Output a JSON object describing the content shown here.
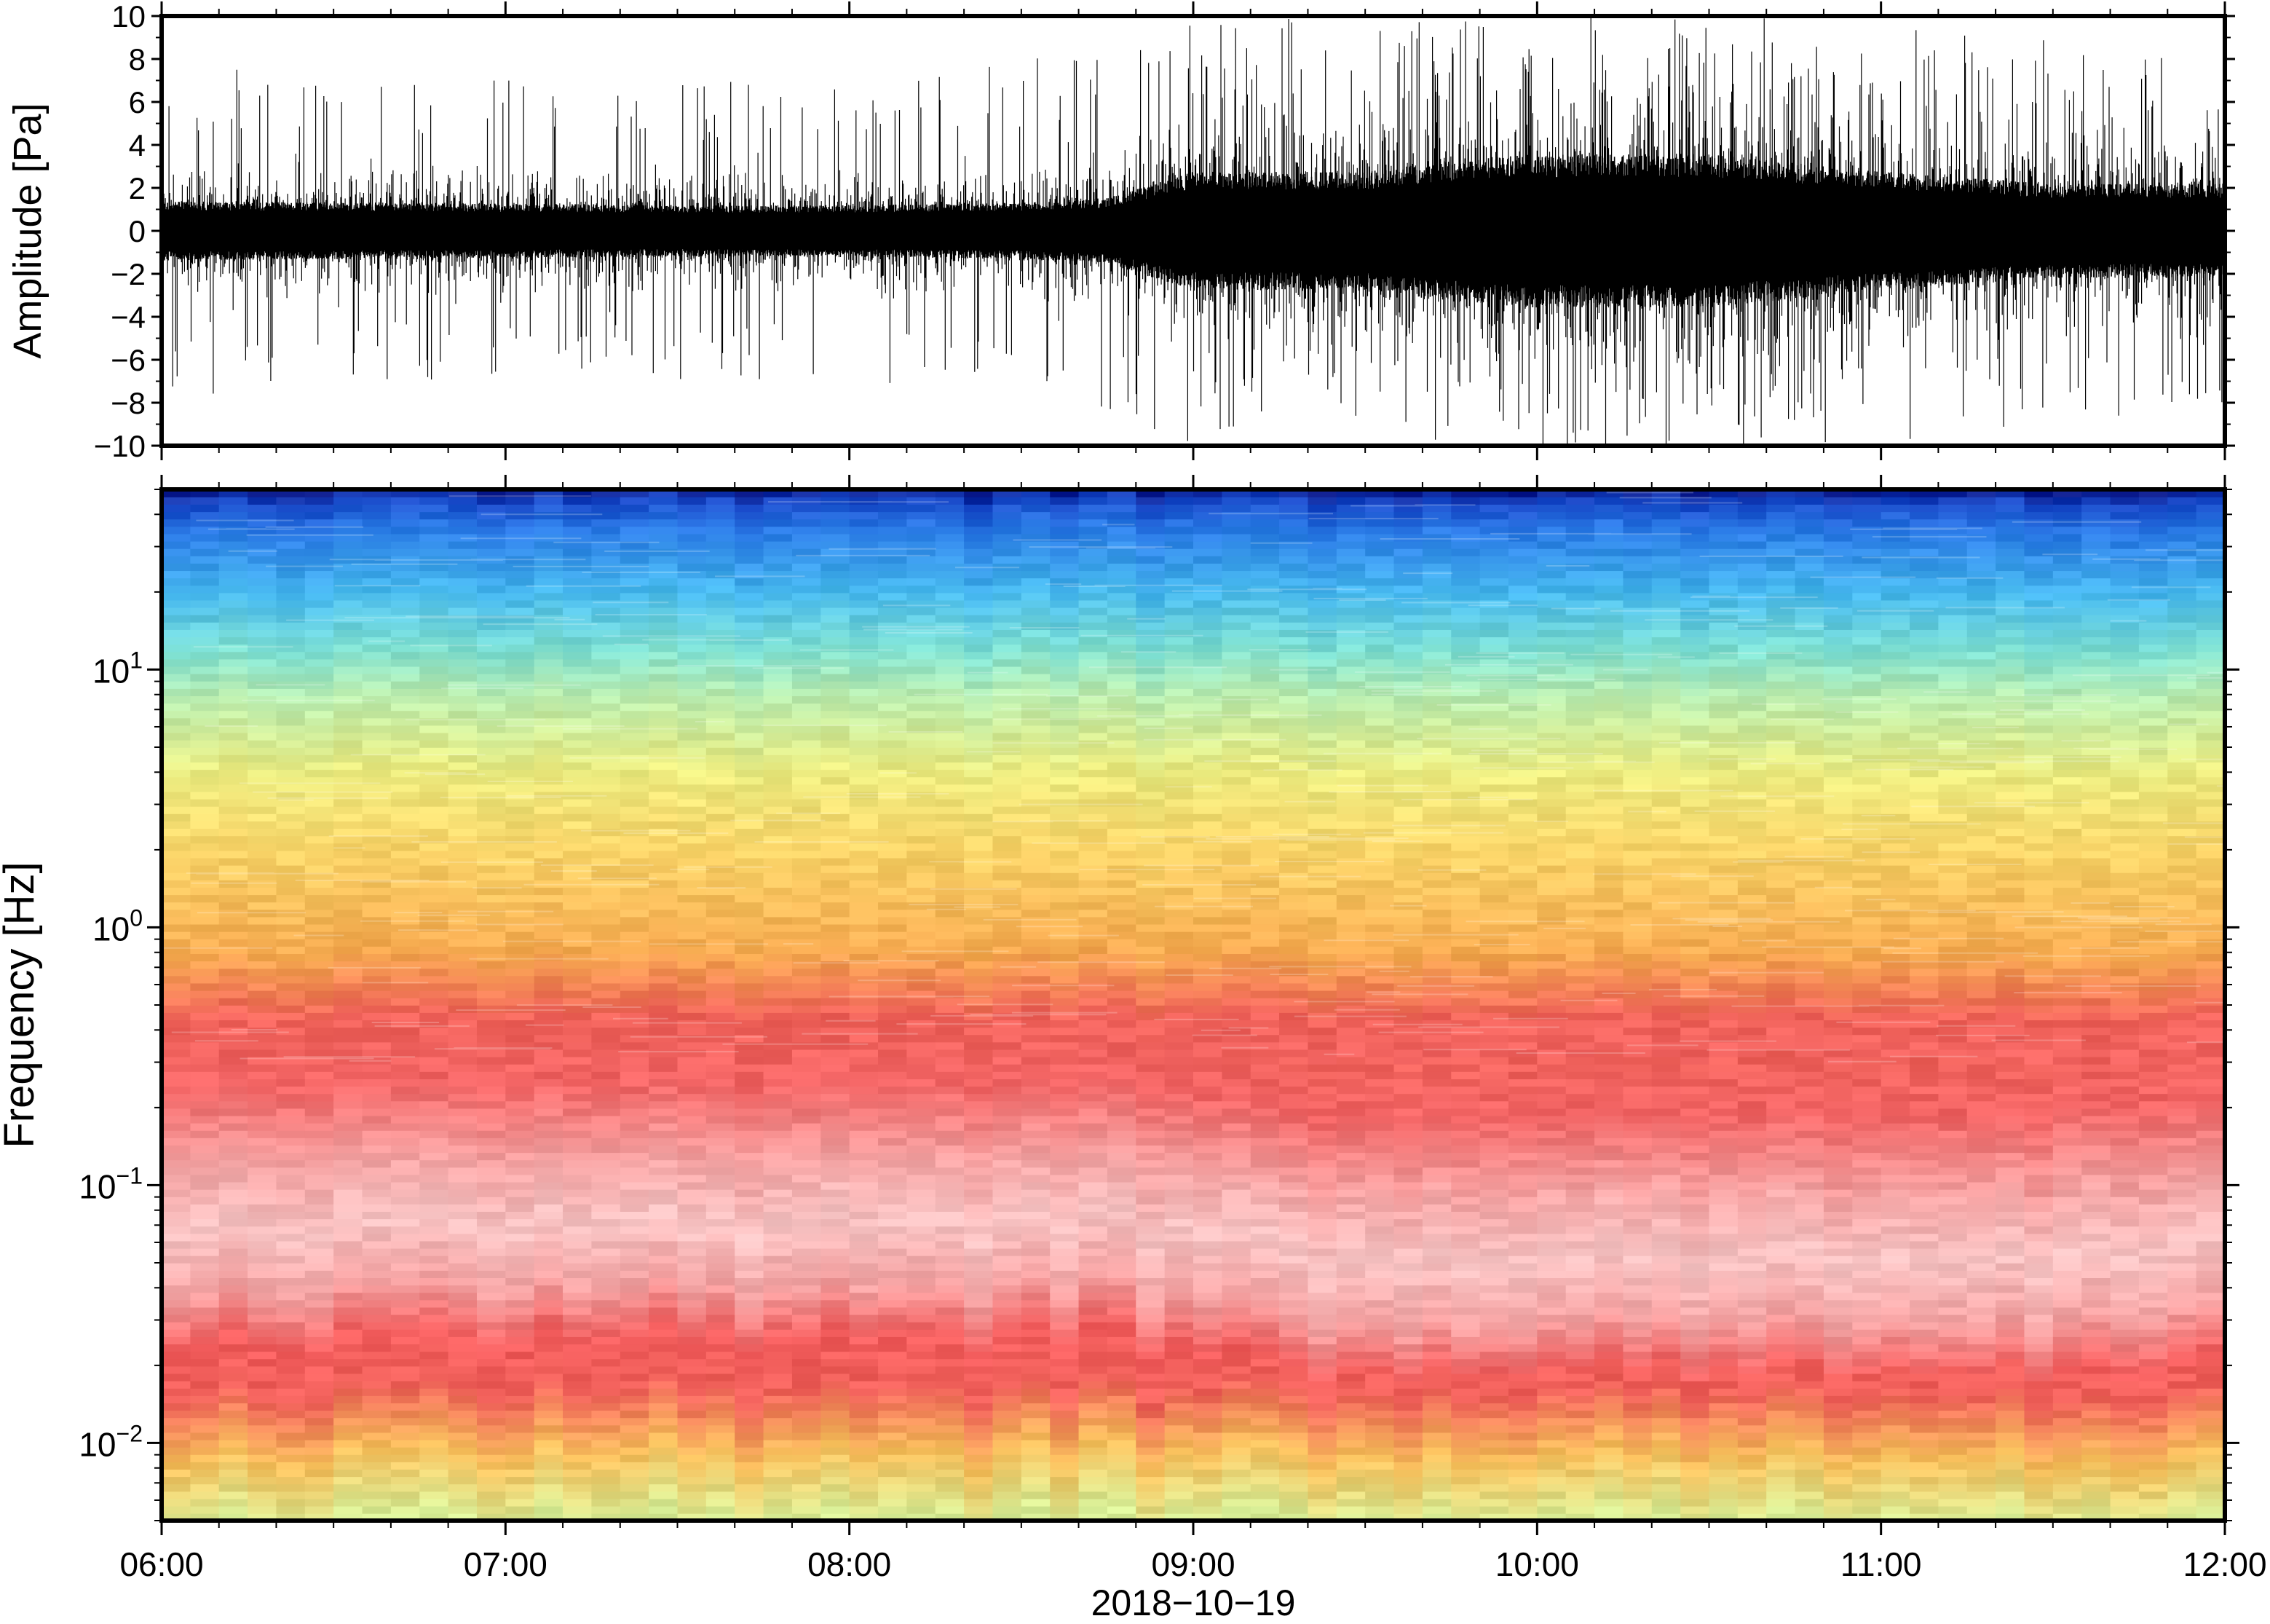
{
  "chart_data": [
    {
      "type": "line",
      "panel": "waveform",
      "ylabel": "Amplitude [Pa]",
      "ylim": [
        -10,
        10
      ],
      "yticks": [
        -10,
        -8,
        -6,
        -4,
        -2,
        0,
        2,
        4,
        6,
        8,
        10
      ],
      "ytick_labels": [
        "−10",
        "−8",
        "−6",
        "−4",
        "−2",
        "0",
        "2",
        "4",
        "6",
        "8",
        "10"
      ],
      "xlim": [
        "06:00",
        "12:00"
      ],
      "grid": false,
      "series": [
        {
          "envelope_time": [
            "06:00",
            "06:30",
            "07:00",
            "07:30",
            "08:00",
            "08:30",
            "08:45",
            "09:00",
            "09:30",
            "09:45",
            "10:00",
            "10:30",
            "11:00",
            "11:30",
            "12:00"
          ],
          "typical_half_range": [
            2.5,
            2.4,
            2.3,
            2.2,
            2.2,
            2.4,
            2.8,
            5.0,
            5.0,
            6.0,
            6.5,
            6.5,
            5.0,
            4.0,
            4.0
          ],
          "peak_half_range": [
            8,
            7,
            7,
            7,
            7,
            8,
            9,
            10,
            10,
            10,
            10,
            10,
            10,
            9,
            8
          ]
        }
      ],
      "color": "#000000"
    },
    {
      "type": "heatmap",
      "panel": "spectrogram",
      "ylabel": "Frequency [Hz]",
      "xlabel": "2018−10−19",
      "y_scale": "log",
      "ylim": [
        0.005,
        50
      ],
      "yticks": [
        0.01,
        0.1,
        1,
        10
      ],
      "ytick_labels": [
        {
          "base": "10",
          "exp": "−2"
        },
        {
          "base": "10",
          "exp": "−1"
        },
        {
          "base": "10",
          "exp": "0"
        },
        {
          "base": "10",
          "exp": "1"
        }
      ],
      "xlim": [
        "06:00",
        "12:00"
      ],
      "xticks": [
        "06:00",
        "07:00",
        "08:00",
        "09:00",
        "10:00",
        "11:00",
        "12:00"
      ],
      "colormap": [
        "#0a1a8c",
        "#1e64e6",
        "#3ca0f0",
        "#5fd2e6",
        "#a0ebbe",
        "#dcf096",
        "#fadc6e",
        "#f7a84a",
        "#f26a4e",
        "#f05a5a",
        "#f7a8a8",
        "#fde6e6"
      ],
      "band_colors_by_frequency": [
        {
          "freq": 0.005,
          "color": "#d8ee96"
        },
        {
          "freq": 0.009,
          "color": "#f8c05c"
        },
        {
          "freq": 0.016,
          "color": "#f0605a"
        },
        {
          "freq": 0.025,
          "color": "#f25c5c"
        },
        {
          "freq": 0.04,
          "color": "#f4a2a2"
        },
        {
          "freq": 0.07,
          "color": "#f8c4c4"
        },
        {
          "freq": 0.12,
          "color": "#f5a6a6"
        },
        {
          "freq": 0.25,
          "color": "#f26464"
        },
        {
          "freq": 0.45,
          "color": "#f0625a"
        },
        {
          "freq": 0.8,
          "color": "#f6aa50"
        },
        {
          "freq": 2,
          "color": "#f9d468"
        },
        {
          "freq": 4,
          "color": "#ecec80"
        },
        {
          "freq": 8,
          "color": "#b8ecb0"
        },
        {
          "freq": 12,
          "color": "#7ee0d2"
        },
        {
          "freq": 20,
          "color": "#46b8ee"
        },
        {
          "freq": 35,
          "color": "#2a7ae6"
        },
        {
          "freq": 45,
          "color": "#1848c8"
        },
        {
          "freq": 50,
          "color": "#0a1a8c"
        }
      ]
    }
  ]
}
